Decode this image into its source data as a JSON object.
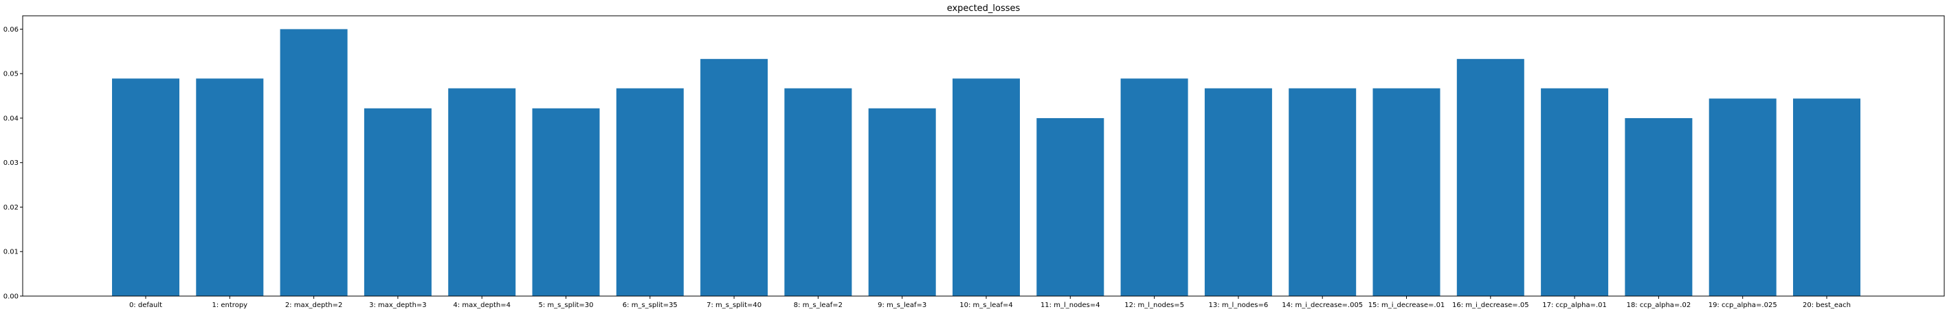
{
  "chart_data": {
    "type": "bar",
    "title": "expected_losses",
    "xlabel": "",
    "ylabel": "",
    "categories": [
      "0: default",
      "1: entropy",
      "2: max_depth=2",
      "3: max_depth=3",
      "4: max_depth=4",
      "5: m_s_split=30",
      "6: m_s_split=35",
      "7: m_s_split=40",
      "8: m_s_leaf=2",
      "9: m_s_leaf=3",
      "10: m_s_leaf=4",
      "11: m_l_nodes=4",
      "12: m_l_nodes=5",
      "13: m_l_nodes=6",
      "14: m_i_decrease=.005",
      "15: m_i_decrease=.01",
      "16: m_i_decrease=.05",
      "17: ccp_alpha=.01",
      "18: ccp_alpha=.02",
      "19: ccp_alpha=.025",
      "20: best_each"
    ],
    "values": [
      0.0489,
      0.0489,
      0.06,
      0.0422,
      0.0467,
      0.0422,
      0.0467,
      0.0533,
      0.0467,
      0.0422,
      0.0489,
      0.04,
      0.0489,
      0.0467,
      0.0467,
      0.0467,
      0.0533,
      0.0467,
      0.04,
      0.0444,
      0.0444
    ],
    "yticks": [
      "0.00",
      "0.01",
      "0.02",
      "0.03",
      "0.04",
      "0.05",
      "0.06"
    ],
    "ylim": [
      0,
      0.063
    ],
    "bar_color": "#1f77b4",
    "grid": false,
    "legend": "none"
  }
}
